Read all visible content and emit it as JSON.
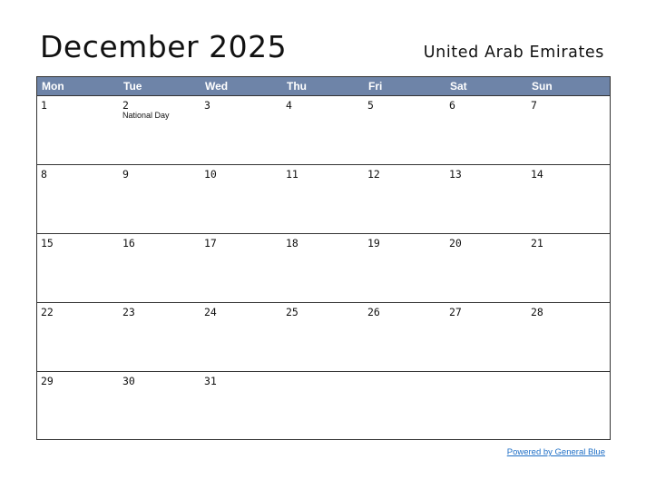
{
  "title": "December 2025",
  "country": "United Arab Emirates",
  "weekdays": [
    "Mon",
    "Tue",
    "Wed",
    "Thu",
    "Fri",
    "Sat",
    "Sun"
  ],
  "weeks": [
    [
      {
        "day": "1"
      },
      {
        "day": "2",
        "holiday": "National Day"
      },
      {
        "day": "3"
      },
      {
        "day": "4"
      },
      {
        "day": "5"
      },
      {
        "day": "6"
      },
      {
        "day": "7"
      }
    ],
    [
      {
        "day": "8"
      },
      {
        "day": "9"
      },
      {
        "day": "10"
      },
      {
        "day": "11"
      },
      {
        "day": "12"
      },
      {
        "day": "13"
      },
      {
        "day": "14"
      }
    ],
    [
      {
        "day": "15"
      },
      {
        "day": "16"
      },
      {
        "day": "17"
      },
      {
        "day": "18"
      },
      {
        "day": "19"
      },
      {
        "day": "20"
      },
      {
        "day": "21"
      }
    ],
    [
      {
        "day": "22"
      },
      {
        "day": "23"
      },
      {
        "day": "24"
      },
      {
        "day": "25"
      },
      {
        "day": "26"
      },
      {
        "day": "27"
      },
      {
        "day": "28"
      }
    ],
    [
      {
        "day": "29"
      },
      {
        "day": "30"
      },
      {
        "day": "31"
      },
      {
        "day": ""
      },
      {
        "day": ""
      },
      {
        "day": ""
      },
      {
        "day": ""
      }
    ]
  ],
  "footer": {
    "link_text": "Powered by General Blue"
  },
  "colors": {
    "header_bg": "#6e84a8",
    "link": "#1f6fc6"
  }
}
